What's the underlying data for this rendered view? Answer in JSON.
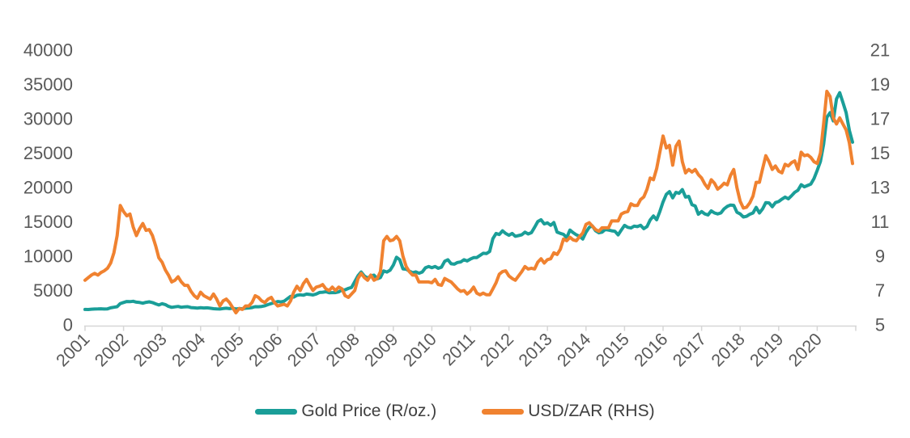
{
  "chart_data": {
    "type": "line",
    "title": "",
    "x_tick_labels": [
      "2001",
      "2002",
      "2003",
      "2004",
      "2005",
      "2006",
      "2007",
      "2008",
      "2009",
      "2010",
      "2011",
      "2012",
      "2013",
      "2014",
      "2015",
      "2016",
      "2017",
      "2018",
      "2019",
      "2020"
    ],
    "x_range_years": [
      2001,
      2021
    ],
    "frequency": "monthly",
    "grid": "off",
    "legend_position": "bottom",
    "left_axis": {
      "min": 0,
      "max": 40000,
      "tick_labels": [
        "0",
        "5000",
        "10000",
        "15000",
        "20000",
        "25000",
        "30000",
        "35000",
        "40000"
      ]
    },
    "right_axis": {
      "min": 5,
      "max": 21,
      "tick_labels": [
        "5",
        "7",
        "9",
        "11",
        "13",
        "15",
        "17",
        "19",
        "21"
      ]
    },
    "series": [
      {
        "name": "Gold Price (R/oz.)",
        "axis": "left",
        "color": "#1a9e98",
        "values": [
          2250,
          2230,
          2280,
          2300,
          2320,
          2340,
          2300,
          2330,
          2480,
          2560,
          2650,
          3100,
          3260,
          3400,
          3380,
          3440,
          3300,
          3260,
          3150,
          3280,
          3350,
          3250,
          3060,
          2900,
          3080,
          2950,
          2700,
          2550,
          2620,
          2680,
          2560,
          2620,
          2650,
          2520,
          2480,
          2450,
          2500,
          2460,
          2480,
          2420,
          2350,
          2320,
          2300,
          2380,
          2420,
          2360,
          2420,
          2320,
          2380,
          2340,
          2420,
          2460,
          2520,
          2650,
          2640,
          2680,
          2780,
          2950,
          3100,
          3250,
          3400,
          3340,
          3450,
          3800,
          4150,
          4050,
          4300,
          4380,
          4320,
          4480,
          4420,
          4350,
          4500,
          4720,
          4750,
          4820,
          4680,
          4700,
          4690,
          4800,
          5080,
          5100,
          5300,
          5450,
          6300,
          7150,
          7690,
          7100,
          6800,
          7140,
          7240,
          6700,
          6900,
          7850,
          7700,
          7950,
          8700,
          9850,
          9500,
          8150,
          8100,
          7820,
          7600,
          7720,
          7520,
          7700,
          8300,
          8500,
          8320,
          8500,
          8230,
          8400,
          9260,
          9480,
          8900,
          8830,
          9080,
          9160,
          9480,
          9300,
          9580,
          9790,
          9800,
          10100,
          10420,
          10380,
          10680,
          12550,
          13300,
          13150,
          13700,
          13300,
          13050,
          13300,
          12900,
          13000,
          13120,
          13500,
          13240,
          13420,
          14200,
          15050,
          15300,
          14700,
          14850,
          14500,
          14900,
          13500,
          13320,
          13180,
          12700,
          13800,
          13420,
          13100,
          12900,
          12500,
          13480,
          14200,
          14400,
          13700,
          13400,
          13500,
          13880,
          13800,
          13700,
          13620,
          13100,
          13800,
          14480,
          14200,
          14100,
          14380,
          14300,
          14500,
          14000,
          14320,
          15280,
          15850,
          15300,
          16500,
          17900,
          19000,
          19400,
          18500,
          19300,
          19150,
          19700,
          18600,
          18700,
          17500,
          17300,
          16100,
          16500,
          16150,
          16000,
          16600,
          16300,
          16150,
          16300,
          16900,
          17250,
          17450,
          17400,
          16400,
          16150,
          15700,
          15800,
          16100,
          16300,
          17100,
          16300,
          16900,
          17800,
          17750,
          17200,
          17800,
          17950,
          18300,
          18600,
          18350,
          18800,
          19300,
          19600,
          20400,
          20100,
          20300,
          20500,
          21300,
          22500,
          23800,
          26300,
          30200,
          30900,
          29700,
          32900,
          33800,
          32400,
          30900,
          28300,
          26600
        ]
      },
      {
        "name": "USD/ZAR (RHS)",
        "axis": "right",
        "color": "#f08230",
        "values": [
          7.6,
          7.75,
          7.9,
          8.0,
          7.9,
          8.05,
          8.15,
          8.3,
          8.6,
          9.2,
          10.2,
          11.95,
          11.6,
          11.35,
          11.45,
          10.7,
          10.2,
          10.6,
          10.9,
          10.5,
          10.55,
          10.2,
          9.6,
          8.9,
          8.65,
          8.2,
          7.9,
          7.5,
          7.6,
          7.8,
          7.5,
          7.3,
          7.3,
          6.95,
          6.7,
          6.55,
          6.9,
          6.7,
          6.6,
          6.5,
          6.8,
          6.5,
          6.1,
          6.4,
          6.5,
          6.3,
          6.0,
          5.7,
          5.95,
          5.9,
          6.1,
          6.1,
          6.3,
          6.7,
          6.6,
          6.4,
          6.3,
          6.5,
          6.6,
          6.3,
          6.1,
          6.15,
          6.2,
          6.1,
          6.4,
          6.9,
          7.25,
          7.0,
          7.4,
          7.65,
          7.3,
          7.0,
          7.2,
          7.25,
          7.35,
          7.1,
          7.0,
          7.2,
          7.0,
          7.2,
          7.1,
          6.7,
          6.6,
          6.8,
          7.0,
          7.7,
          8.0,
          7.75,
          7.6,
          7.9,
          7.6,
          7.7,
          8.1,
          9.9,
          10.15,
          9.9,
          9.95,
          10.15,
          9.9,
          9.0,
          8.4,
          8.1,
          7.9,
          7.9,
          7.5,
          7.5,
          7.5,
          7.5,
          7.45,
          7.65,
          7.35,
          7.3,
          7.7,
          7.6,
          7.5,
          7.3,
          7.1,
          6.95,
          7.0,
          6.8,
          6.95,
          7.2,
          6.85,
          6.75,
          6.85,
          6.75,
          6.75,
          7.1,
          7.45,
          7.95,
          8.1,
          8.15,
          7.85,
          7.7,
          7.6,
          7.85,
          8.1,
          8.4,
          8.25,
          8.3,
          8.25,
          8.65,
          8.85,
          8.6,
          8.8,
          8.85,
          9.2,
          9.1,
          9.4,
          10.0,
          9.9,
          10.1,
          9.95,
          9.9,
          10.15,
          10.35,
          10.85,
          10.95,
          10.75,
          10.55,
          10.45,
          10.65,
          10.65,
          10.65,
          11.05,
          11.05,
          11.05,
          11.45,
          11.55,
          11.6,
          12.05,
          11.95,
          11.95,
          12.3,
          12.45,
          12.9,
          13.55,
          13.45,
          14.1,
          15.05,
          16.0,
          15.3,
          15.45,
          14.3,
          15.4,
          15.7,
          14.5,
          13.85,
          14.05,
          13.9,
          14.05,
          13.75,
          13.55,
          13.2,
          12.95,
          13.45,
          13.25,
          12.9,
          13.05,
          13.25,
          13.15,
          13.7,
          14.05,
          13.0,
          12.2,
          11.8,
          11.85,
          12.1,
          12.5,
          13.3,
          13.3,
          14.1,
          14.85,
          14.5,
          14.05,
          14.25,
          13.95,
          13.85,
          14.35,
          14.25,
          14.45,
          14.55,
          14.05,
          15.05,
          14.85,
          14.9,
          14.75,
          14.5,
          14.4,
          15.0,
          16.7,
          18.6,
          18.3,
          17.05,
          16.7,
          17.05,
          16.7,
          16.35,
          15.6,
          14.4
        ]
      }
    ]
  },
  "colors": {
    "axis_line": "#d6d6d6",
    "tick_label": "#595959",
    "legend_text": "#3f3f3f",
    "background": "#ffffff"
  }
}
